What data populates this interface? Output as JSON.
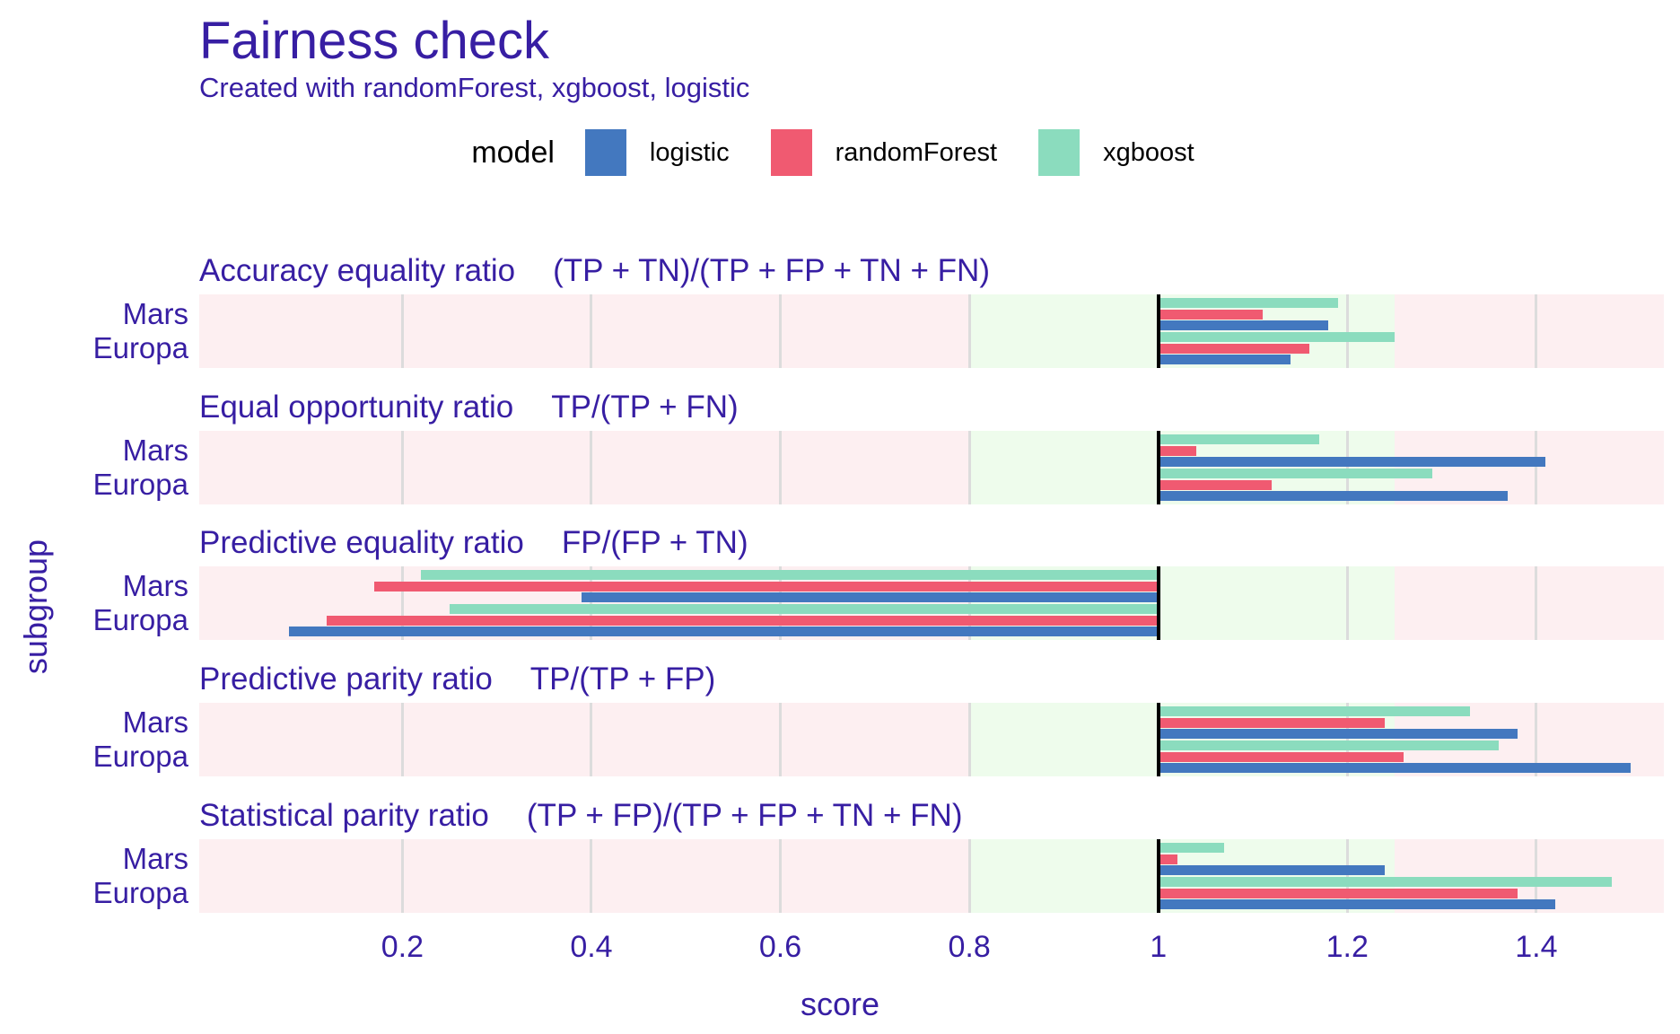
{
  "chart": {
    "title": "Fairness check",
    "subtitle": "Created with randomForest, xgboost, logistic",
    "xlabel": "score",
    "ylabel": "subgroup"
  },
  "legend": {
    "title": "model",
    "items": [
      {
        "label": "logistic",
        "color": "#4378bf"
      },
      {
        "label": "randomForest",
        "color": "#f05a71"
      },
      {
        "label": "xgboost",
        "color": "#8bdcbe"
      }
    ]
  },
  "chart_data": {
    "type": "bar",
    "orientation": "horizontal",
    "title": "Fairness check",
    "subtitle": "Created with randomForest, xgboost, logistic",
    "xlabel": "score",
    "ylabel": "subgroup",
    "x_ticks": [
      0.2,
      0.4,
      0.6,
      0.8,
      1,
      1.2,
      1.4
    ],
    "x_domain": [
      -0.015,
      1.535
    ],
    "reference_line": 1,
    "fair_zone": {
      "min": 0.8,
      "max": 1.25,
      "fill": "#eefcec"
    },
    "unfair_zone_fill": "#fdeff1",
    "gridline_color": "#dcdcdc",
    "text_color": "#371ea3",
    "subgroups": [
      "Mars",
      "Europa"
    ],
    "bar_order_top_to_bottom": [
      "xgboost",
      "randomForest",
      "logistic"
    ],
    "series_colors": {
      "logistic": "#4378bf",
      "randomForest": "#f05a71",
      "xgboost": "#8bdcbe"
    },
    "panels": [
      {
        "metric": "Accuracy equality ratio",
        "formula": "(TP + TN)/(TP + FP + TN + FN)",
        "values": {
          "Mars": {
            "xgboost": 1.19,
            "randomForest": 1.11,
            "logistic": 1.18
          },
          "Europa": {
            "xgboost": 1.25,
            "randomForest": 1.16,
            "logistic": 1.14
          }
        }
      },
      {
        "metric": "Equal opportunity ratio",
        "formula": "TP/(TP + FN)",
        "values": {
          "Mars": {
            "xgboost": 1.17,
            "randomForest": 1.04,
            "logistic": 1.41
          },
          "Europa": {
            "xgboost": 1.29,
            "randomForest": 1.12,
            "logistic": 1.37
          }
        }
      },
      {
        "metric": "Predictive equality ratio",
        "formula": "FP/(FP + TN)",
        "values": {
          "Mars": {
            "xgboost": 0.22,
            "randomForest": 0.17,
            "logistic": 0.39
          },
          "Europa": {
            "xgboost": 0.25,
            "randomForest": 0.12,
            "logistic": 0.08
          }
        }
      },
      {
        "metric": "Predictive parity ratio",
        "formula": "TP/(TP + FP)",
        "values": {
          "Mars": {
            "xgboost": 1.33,
            "randomForest": 1.24,
            "logistic": 1.38
          },
          "Europa": {
            "xgboost": 1.36,
            "randomForest": 1.26,
            "logistic": 1.5
          }
        }
      },
      {
        "metric": "Statistical parity ratio",
        "formula": "(TP + FP)/(TP + FP + TN + FN)",
        "values": {
          "Mars": {
            "xgboost": 1.07,
            "randomForest": 1.02,
            "logistic": 1.24
          },
          "Europa": {
            "xgboost": 1.48,
            "randomForest": 1.38,
            "logistic": 1.42
          }
        }
      }
    ]
  }
}
